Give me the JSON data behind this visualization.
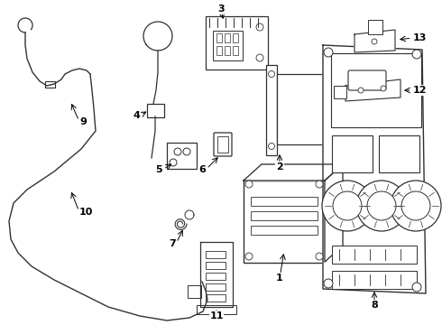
{
  "bg_color": "#ffffff",
  "line_color": "#303030",
  "line_width": 0.9,
  "label_color": "#000000",
  "fig_width": 4.9,
  "fig_height": 3.6,
  "dpi": 100
}
